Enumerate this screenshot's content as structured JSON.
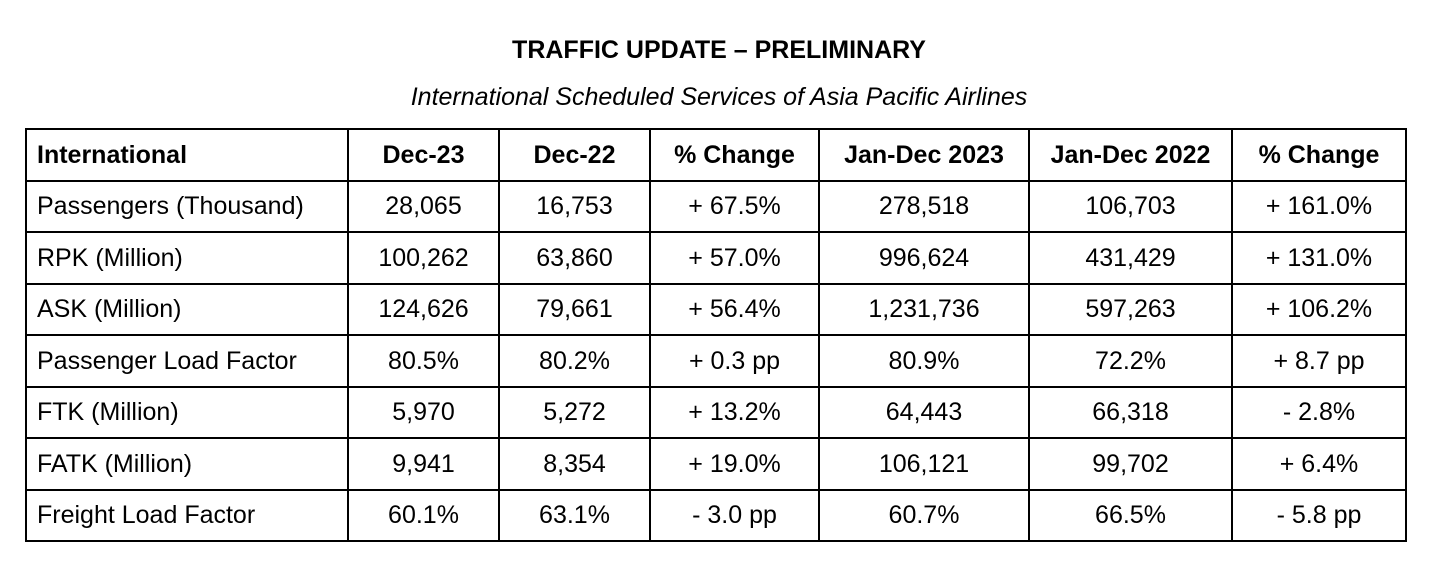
{
  "report": {
    "title": "TRAFFIC UPDATE – PRELIMINARY",
    "subtitle": "International Scheduled Services of Asia Pacific Airlines"
  },
  "table": {
    "headers": [
      "International",
      "Dec-23",
      "Dec-22",
      "% Change",
      "Jan-Dec 2023",
      "Jan-Dec 2022",
      "% Change"
    ],
    "rows": [
      [
        "Passengers (Thousand)",
        "28,065",
        "16,753",
        "+ 67.5%",
        "278,518",
        "106,703",
        "+ 161.0%"
      ],
      [
        "RPK (Million)",
        "100,262",
        "63,860",
        "+ 57.0%",
        "996,624",
        "431,429",
        "+ 131.0%"
      ],
      [
        "ASK (Million)",
        "124,626",
        "79,661",
        "+ 56.4%",
        "1,231,736",
        "597,263",
        "+ 106.2%"
      ],
      [
        "Passenger Load Factor",
        "80.5%",
        "80.2%",
        "+ 0.3 pp",
        "80.9%",
        "72.2%",
        "+ 8.7 pp"
      ],
      [
        "FTK (Million)",
        "5,970",
        "5,272",
        "+ 13.2%",
        "64,443",
        "66,318",
        "- 2.8%"
      ],
      [
        "FATK (Million)",
        "9,941",
        "8,354",
        "+ 19.0%",
        "106,121",
        "99,702",
        "+ 6.4%"
      ],
      [
        "Freight Load Factor",
        "60.1%",
        "63.1%",
        "- 3.0 pp",
        "60.7%",
        "66.5%",
        "- 5.8 pp"
      ]
    ]
  }
}
